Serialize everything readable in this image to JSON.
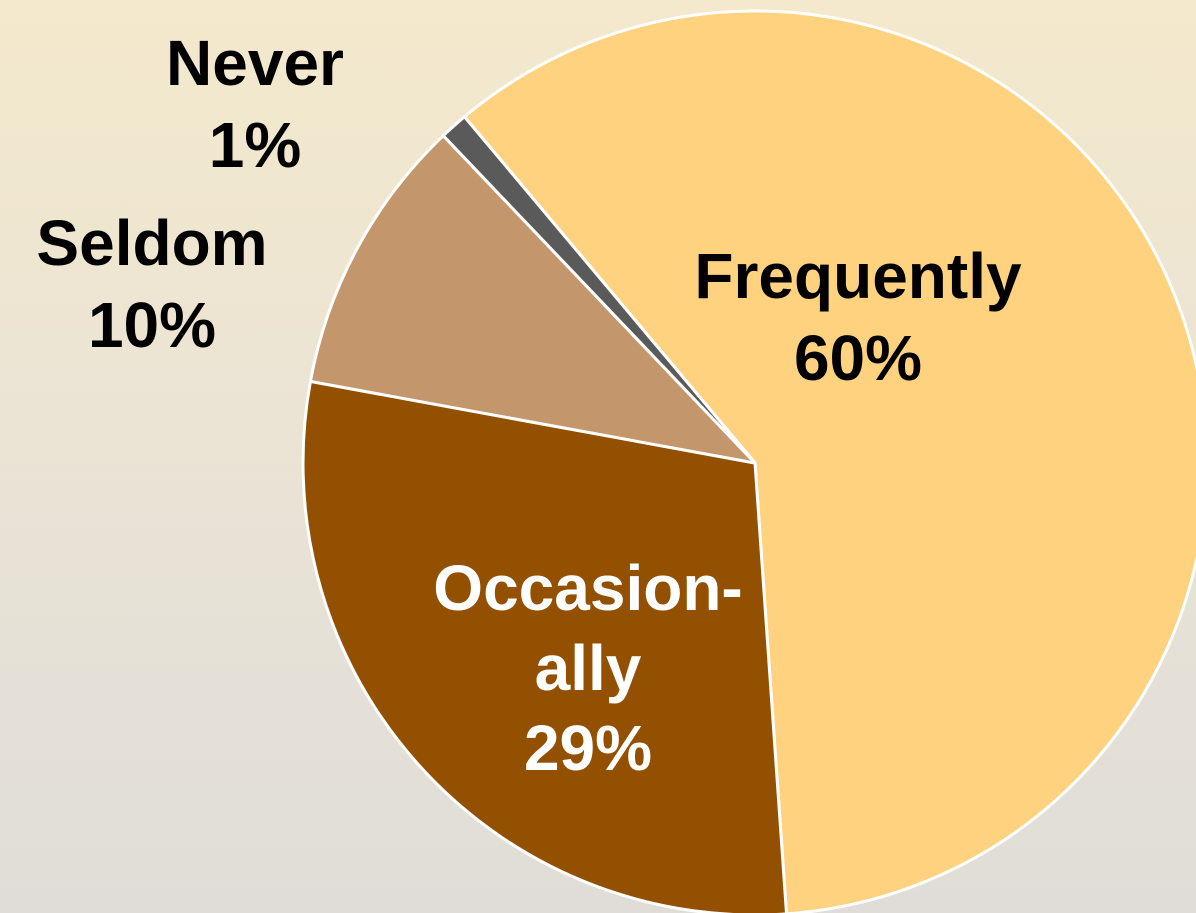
{
  "chart_data": {
    "type": "pie",
    "start_angle_deg": 320,
    "direction": "clockwise",
    "slices": [
      {
        "label": "Frequently",
        "label_lines": [
          "Frequently"
        ],
        "percent_label": "60%",
        "value": 60,
        "color": "#ffd27f",
        "text_color": "#000000"
      },
      {
        "label": "Occasionally",
        "label_lines": [
          "Occasion-",
          "ally"
        ],
        "percent_label": "29%",
        "value": 29,
        "color": "#935000",
        "text_color": "#ffffff"
      },
      {
        "label": "Seldom",
        "label_lines": [
          "Seldom"
        ],
        "percent_label": "10%",
        "value": 10,
        "color": "#c4966c",
        "text_color": "#000000"
      },
      {
        "label": "Never",
        "label_lines": [
          "Never"
        ],
        "percent_label": "1%",
        "value": 1,
        "color": "#5a5a5a",
        "text_color": "#000000"
      }
    ]
  }
}
